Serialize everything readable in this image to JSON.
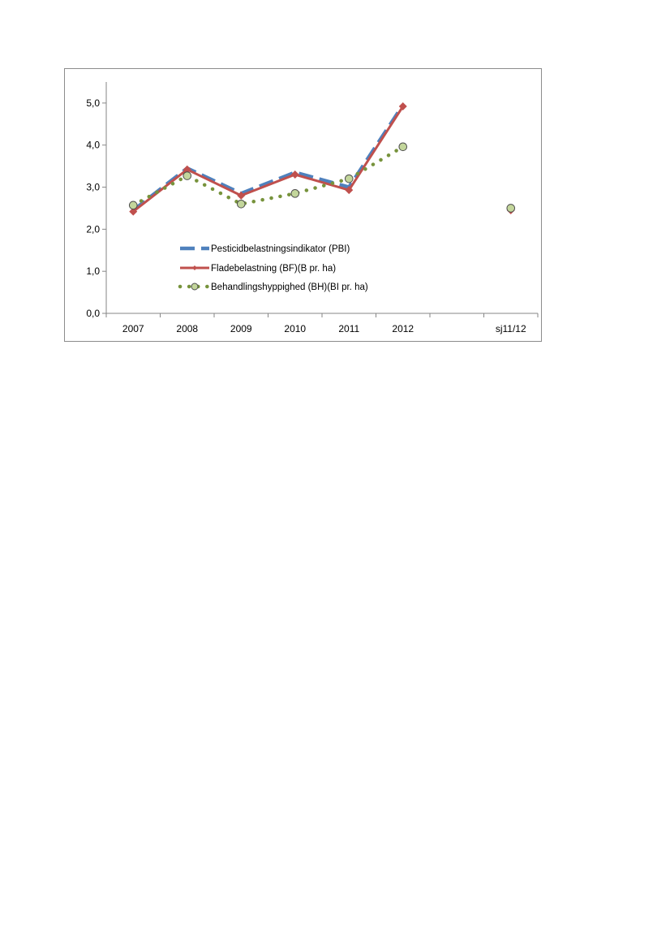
{
  "chart_data": {
    "type": "line",
    "title": "",
    "xlabel": "",
    "ylabel": "",
    "categories": [
      "2007",
      "2008",
      "2009",
      "2010",
      "2011",
      "2012",
      "",
      "sj11/12"
    ],
    "ylim": [
      0,
      5.5
    ],
    "yticks": [
      "0,0",
      "1,0",
      "2,0",
      "3,0",
      "4,0",
      "5,0"
    ],
    "ytick_values": [
      0,
      1,
      2,
      3,
      4,
      5
    ],
    "grid": false,
    "legend_position": "center",
    "series": [
      {
        "name": "Pesticidbelastningsindikator (PBI)",
        "color": "#4f81bd",
        "style": "dashed",
        "values": [
          2.45,
          3.45,
          2.85,
          3.35,
          3.0,
          4.95,
          null,
          null
        ]
      },
      {
        "name": "Fladebelastning (BF)(B pr. ha)",
        "color": "#c0504d",
        "style": "solid-diamond",
        "values": [
          2.42,
          3.42,
          2.8,
          3.3,
          2.93,
          4.92,
          null,
          2.45
        ]
      },
      {
        "name": "Behandlingshyppighed (BH)(BI pr. ha)",
        "color": "#77933c",
        "marker_fill": "#c3d69b",
        "style": "dotted-circle",
        "values": [
          2.57,
          3.27,
          2.6,
          2.85,
          3.2,
          3.96,
          null,
          2.5
        ]
      }
    ]
  }
}
